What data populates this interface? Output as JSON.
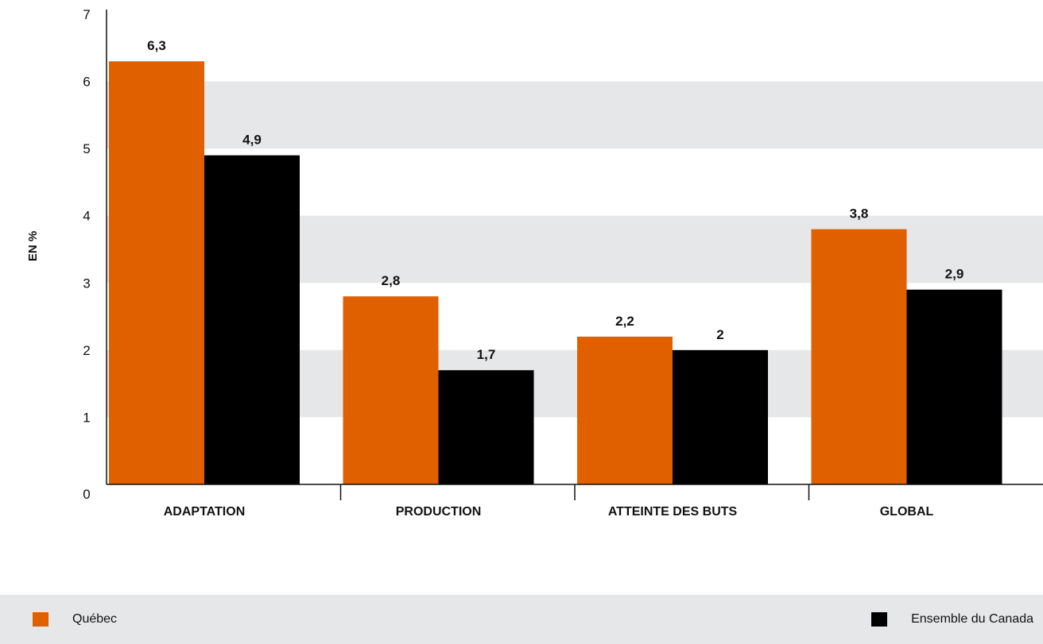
{
  "chart_data": {
    "type": "bar",
    "ylabel": "EN %",
    "ylim": [
      0,
      7
    ],
    "yticks": [
      "0",
      "1",
      "2",
      "3",
      "4",
      "5",
      "6",
      "7"
    ],
    "grid": "alternating horizontal bands",
    "categories": [
      "ADAPTATION",
      "PRODUCTION",
      "ATTEINTE DES BUTS",
      "GLOBAL"
    ],
    "series": [
      {
        "name": "Québec",
        "color": "#e06000",
        "values": [
          6.3,
          2.8,
          2.2,
          3.8
        ],
        "labels": [
          "6,3",
          "2,8",
          "2,2",
          "3,8"
        ]
      },
      {
        "name": "Ensemble du Canada",
        "color": "#000000",
        "values": [
          4.9,
          1.7,
          2.0,
          2.9
        ],
        "labels": [
          "4,9",
          "1,7",
          "2",
          "2,9"
        ]
      }
    ],
    "legend_position": "bottom"
  },
  "legend": {
    "items": [
      {
        "label": "Québec",
        "color": "#e06000"
      },
      {
        "label": "Ensemble du Canada",
        "color": "#000000"
      }
    ]
  }
}
